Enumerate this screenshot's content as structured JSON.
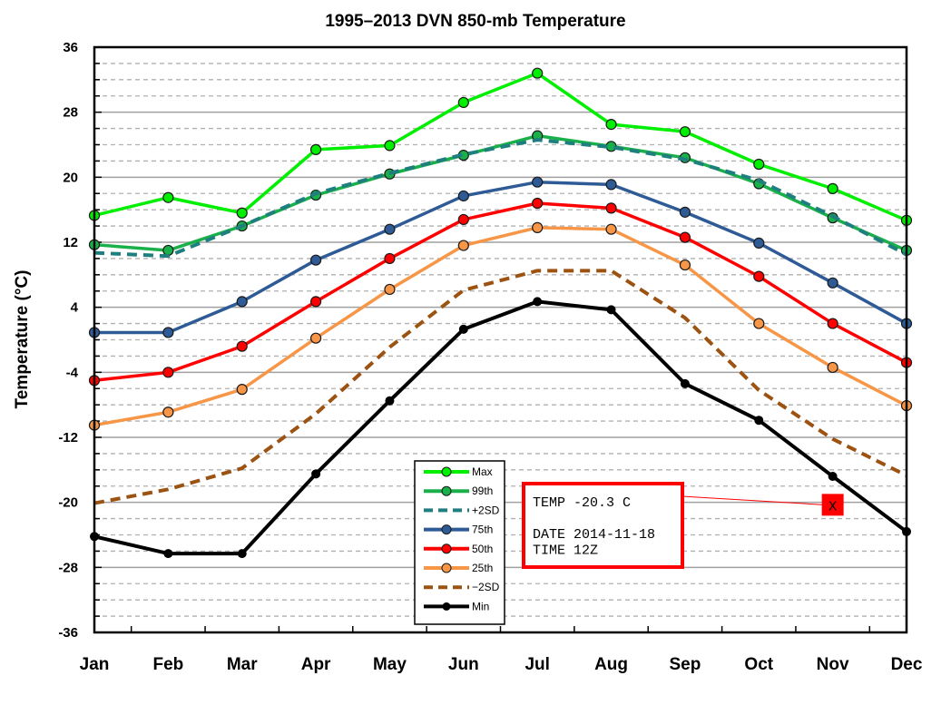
{
  "chart_data": {
    "type": "line",
    "title": "1995–2013 DVN 850-mb Temperature",
    "xlabel": "",
    "ylabel": "Temperature (°C)",
    "categories": [
      "Jan",
      "Feb",
      "Mar",
      "Apr",
      "May",
      "Jun",
      "Jul",
      "Aug",
      "Sep",
      "Oct",
      "Nov",
      "Dec"
    ],
    "ylim": [
      -36,
      36
    ],
    "yticks": [
      36,
      28,
      20,
      12,
      4,
      -4,
      -12,
      -20,
      -28,
      -36
    ],
    "ytick_labels": [
      "36",
      "28",
      "20",
      "12",
      "4",
      "-4",
      "-12",
      "-20",
      "-28",
      "-36"
    ],
    "grid": "horizontal; solid major every 8, dashed minor every 2",
    "legend_position": "lower-center",
    "series": [
      {
        "name": "Max",
        "color": "#00ee00",
        "style": "solid",
        "marker": "circle",
        "values": [
          15.3,
          17.5,
          15.6,
          23.4,
          23.9,
          29.2,
          32.8,
          26.5,
          25.6,
          21.6,
          18.6,
          14.7
        ]
      },
      {
        "name": "99th",
        "color": "#19b04a",
        "style": "solid",
        "marker": "circle",
        "values": [
          11.7,
          11.0,
          14.0,
          17.8,
          20.4,
          22.7,
          25.1,
          23.8,
          22.4,
          19.2,
          15.0,
          11.0
        ]
      },
      {
        "name": "+2SD",
        "color": "#1f7f7f",
        "style": "dashed",
        "marker": "none",
        "values": [
          10.7,
          10.3,
          14.0,
          18.0,
          20.5,
          22.8,
          24.6,
          23.7,
          22.2,
          19.6,
          15.2,
          10.5
        ]
      },
      {
        "name": "75th",
        "color": "#2e5a96",
        "style": "solid",
        "marker": "circle",
        "values": [
          0.9,
          0.9,
          4.7,
          9.8,
          13.6,
          17.7,
          19.4,
          19.1,
          15.7,
          11.9,
          7.0,
          2.0
        ]
      },
      {
        "name": "50th",
        "color": "#ff0000",
        "style": "solid",
        "marker": "circle",
        "values": [
          -5.0,
          -4.0,
          -0.8,
          4.7,
          10.0,
          14.8,
          16.8,
          16.2,
          12.6,
          7.8,
          2.0,
          -2.8
        ]
      },
      {
        "name": "25th",
        "color": "#f79646",
        "style": "solid",
        "marker": "circle",
        "values": [
          -10.5,
          -8.9,
          -6.1,
          0.2,
          6.2,
          11.6,
          13.8,
          13.6,
          9.2,
          2.0,
          -3.4,
          -8.1
        ]
      },
      {
        "name": "-2SD",
        "color": "#9c5210",
        "style": "dashed",
        "marker": "none",
        "values": [
          -20.1,
          -18.4,
          -15.8,
          -9.1,
          -0.9,
          6.1,
          8.5,
          8.5,
          2.7,
          -6.2,
          -12.2,
          -16.7
        ]
      },
      {
        "name": "Min",
        "color": "#000000",
        "style": "solid",
        "marker": "dot",
        "values": [
          -24.2,
          -26.3,
          -26.3,
          -16.5,
          -7.5,
          1.3,
          4.7,
          3.7,
          -5.4,
          -9.9,
          -16.8,
          -23.6
        ]
      }
    ],
    "legend": [
      "Max",
      "99th",
      "+2SD",
      "75th",
      "50th",
      "25th",
      "−2SD",
      "Min"
    ],
    "annotation": {
      "month": "Nov",
      "value": -20.3,
      "marker_label": "X",
      "color": "#ff0000",
      "lines": [
        "TEMP -20.3 C",
        "",
        "DATE 2014-11-18",
        "TIME 12Z"
      ]
    }
  }
}
